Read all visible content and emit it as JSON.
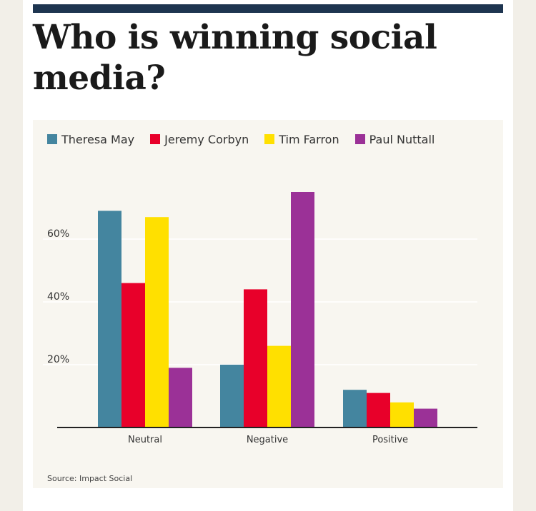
{
  "headline": "Who is winning social media?",
  "source": "Source: Impact Social",
  "chart_data": {
    "type": "bar",
    "title": "Who is winning social media?",
    "categories": [
      "Neutral",
      "Negative",
      "Positive"
    ],
    "series": [
      {
        "name": "Theresa May",
        "color": "#44859f",
        "values": [
          69,
          20,
          12
        ]
      },
      {
        "name": "Jeremy Corbyn",
        "color": "#e8002a",
        "values": [
          46,
          44,
          11
        ]
      },
      {
        "name": "Tim Farron",
        "color": "#ffe000",
        "values": [
          67,
          26,
          8
        ]
      },
      {
        "name": "Paul Nuttall",
        "color": "#9b3197",
        "values": [
          19,
          75,
          6
        ]
      }
    ],
    "yticks": [
      "20%",
      "40%",
      "60%"
    ],
    "ytick_values": [
      20,
      40,
      60
    ],
    "ylim": [
      0,
      80
    ],
    "xlabel": "",
    "ylabel": "",
    "grid": true
  }
}
